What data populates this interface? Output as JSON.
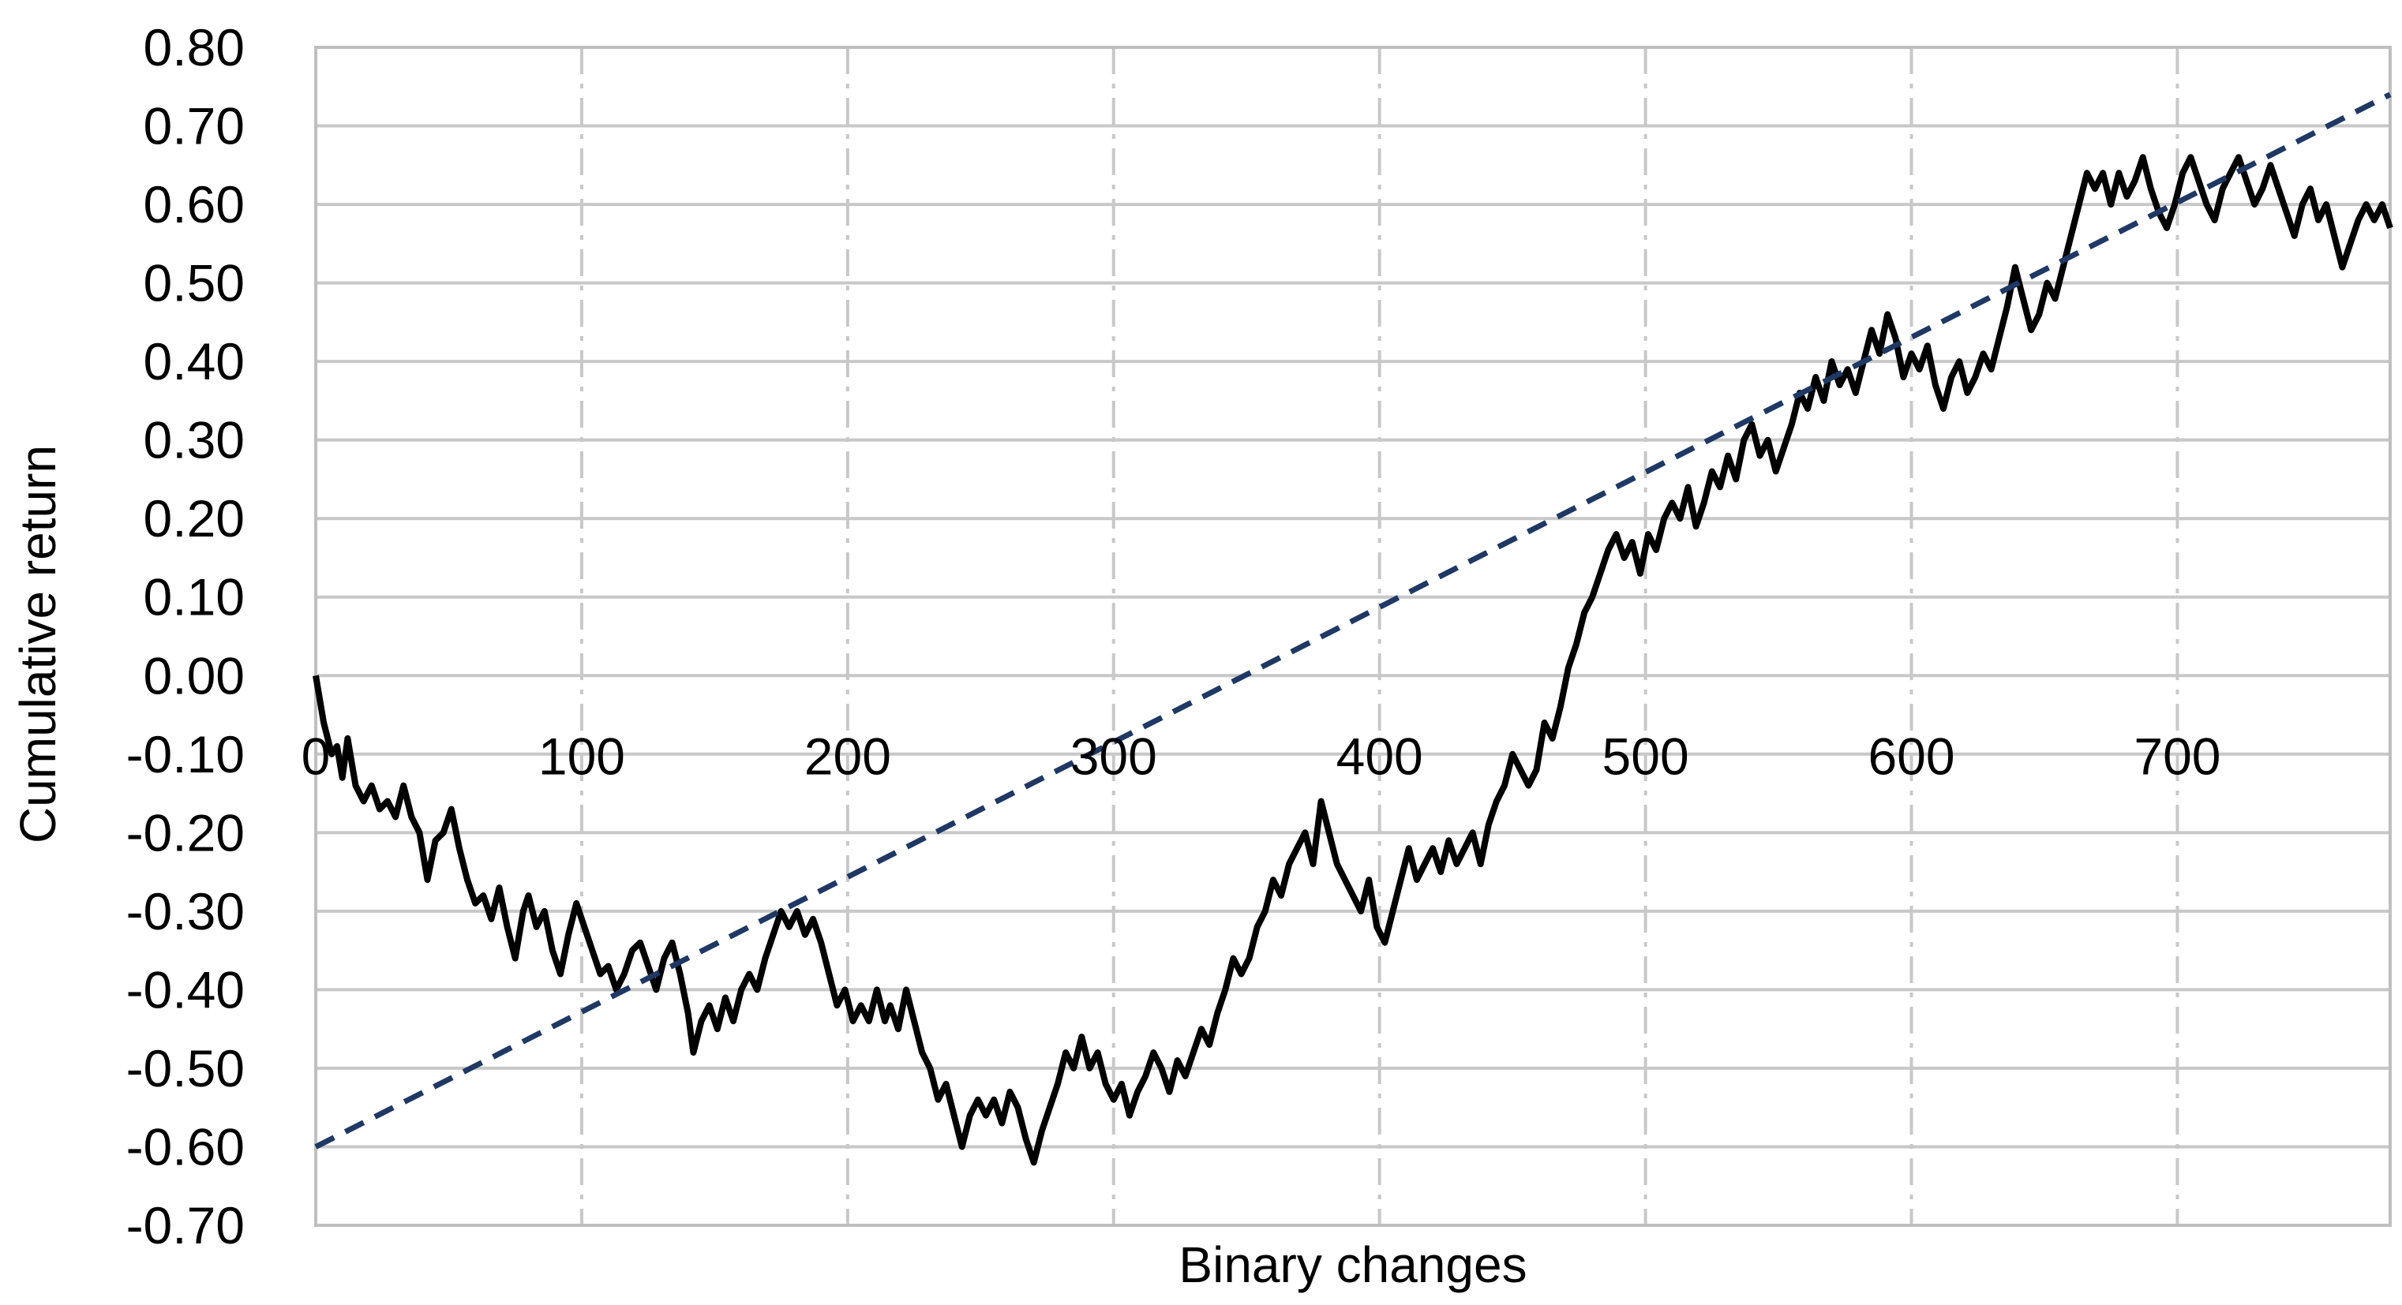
{
  "chart_data": {
    "type": "line",
    "xlabel": "Binary changes",
    "ylabel": "Cumulative return",
    "xlim": [
      0,
      780
    ],
    "ylim": [
      -0.7,
      0.8
    ],
    "x_ticks": [
      0,
      100,
      200,
      300,
      400,
      500,
      600,
      700
    ],
    "x_tick_labels": [
      "0",
      "100",
      "200",
      "300",
      "400",
      "500",
      "600",
      "700"
    ],
    "y_ticks": [
      0.8,
      0.7,
      0.6,
      0.5,
      0.4,
      0.3,
      0.2,
      0.1,
      0.0,
      -0.1,
      -0.2,
      -0.3,
      -0.4,
      -0.5,
      -0.6,
      -0.7
    ],
    "y_tick_labels": [
      "0.80",
      "0.70",
      "0.60",
      "0.50",
      "0.40",
      "0.30",
      "0.20",
      "0.10",
      "0.00",
      "-0.10",
      "-0.20",
      "-0.30",
      "-0.40",
      "-0.50",
      "-0.60",
      "-0.70"
    ],
    "grid": {
      "horizontal": "solid",
      "vertical": "dash-dot"
    },
    "series": [
      {
        "style": "solid",
        "color": "#000000",
        "points": [
          [
            0,
            0.0
          ],
          [
            3,
            -0.06
          ],
          [
            6,
            -0.1
          ],
          [
            8,
            -0.09
          ],
          [
            10,
            -0.13
          ],
          [
            12,
            -0.08
          ],
          [
            15,
            -0.14
          ],
          [
            18,
            -0.16
          ],
          [
            21,
            -0.14
          ],
          [
            24,
            -0.17
          ],
          [
            27,
            -0.16
          ],
          [
            30,
            -0.18
          ],
          [
            33,
            -0.14
          ],
          [
            36,
            -0.18
          ],
          [
            39,
            -0.2
          ],
          [
            42,
            -0.26
          ],
          [
            45,
            -0.21
          ],
          [
            48,
            -0.2
          ],
          [
            51,
            -0.17
          ],
          [
            54,
            -0.22
          ],
          [
            57,
            -0.26
          ],
          [
            60,
            -0.29
          ],
          [
            63,
            -0.28
          ],
          [
            66,
            -0.31
          ],
          [
            69,
            -0.27
          ],
          [
            72,
            -0.32
          ],
          [
            75,
            -0.36
          ],
          [
            78,
            -0.3
          ],
          [
            80,
            -0.28
          ],
          [
            83,
            -0.32
          ],
          [
            86,
            -0.3
          ],
          [
            89,
            -0.35
          ],
          [
            92,
            -0.38
          ],
          [
            95,
            -0.33
          ],
          [
            98,
            -0.29
          ],
          [
            101,
            -0.32
          ],
          [
            104,
            -0.35
          ],
          [
            107,
            -0.38
          ],
          [
            110,
            -0.37
          ],
          [
            113,
            -0.4
          ],
          [
            116,
            -0.38
          ],
          [
            119,
            -0.35
          ],
          [
            122,
            -0.34
          ],
          [
            125,
            -0.37
          ],
          [
            128,
            -0.4
          ],
          [
            131,
            -0.36
          ],
          [
            134,
            -0.34
          ],
          [
            137,
            -0.38
          ],
          [
            140,
            -0.43
          ],
          [
            142,
            -0.48
          ],
          [
            145,
            -0.44
          ],
          [
            148,
            -0.42
          ],
          [
            151,
            -0.45
          ],
          [
            154,
            -0.41
          ],
          [
            157,
            -0.44
          ],
          [
            160,
            -0.4
          ],
          [
            163,
            -0.38
          ],
          [
            166,
            -0.4
          ],
          [
            169,
            -0.36
          ],
          [
            172,
            -0.33
          ],
          [
            175,
            -0.3
          ],
          [
            178,
            -0.32
          ],
          [
            181,
            -0.3
          ],
          [
            184,
            -0.33
          ],
          [
            187,
            -0.31
          ],
          [
            190,
            -0.34
          ],
          [
            193,
            -0.38
          ],
          [
            196,
            -0.42
          ],
          [
            199,
            -0.4
          ],
          [
            202,
            -0.44
          ],
          [
            205,
            -0.42
          ],
          [
            208,
            -0.44
          ],
          [
            211,
            -0.4
          ],
          [
            214,
            -0.44
          ],
          [
            216,
            -0.42
          ],
          [
            219,
            -0.45
          ],
          [
            222,
            -0.4
          ],
          [
            225,
            -0.44
          ],
          [
            228,
            -0.48
          ],
          [
            231,
            -0.5
          ],
          [
            234,
            -0.54
          ],
          [
            237,
            -0.52
          ],
          [
            240,
            -0.56
          ],
          [
            243,
            -0.6
          ],
          [
            246,
            -0.56
          ],
          [
            249,
            -0.54
          ],
          [
            252,
            -0.56
          ],
          [
            255,
            -0.54
          ],
          [
            258,
            -0.57
          ],
          [
            261,
            -0.53
          ],
          [
            264,
            -0.55
          ],
          [
            267,
            -0.59
          ],
          [
            270,
            -0.62
          ],
          [
            273,
            -0.58
          ],
          [
            276,
            -0.55
          ],
          [
            279,
            -0.52
          ],
          [
            282,
            -0.48
          ],
          [
            285,
            -0.5
          ],
          [
            288,
            -0.46
          ],
          [
            291,
            -0.5
          ],
          [
            294,
            -0.48
          ],
          [
            297,
            -0.52
          ],
          [
            300,
            -0.54
          ],
          [
            303,
            -0.52
          ],
          [
            306,
            -0.56
          ],
          [
            309,
            -0.53
          ],
          [
            312,
            -0.51
          ],
          [
            315,
            -0.48
          ],
          [
            318,
            -0.5
          ],
          [
            321,
            -0.53
          ],
          [
            324,
            -0.49
          ],
          [
            327,
            -0.51
          ],
          [
            330,
            -0.48
          ],
          [
            333,
            -0.45
          ],
          [
            336,
            -0.47
          ],
          [
            339,
            -0.43
          ],
          [
            342,
            -0.4
          ],
          [
            345,
            -0.36
          ],
          [
            348,
            -0.38
          ],
          [
            351,
            -0.36
          ],
          [
            354,
            -0.32
          ],
          [
            357,
            -0.3
          ],
          [
            360,
            -0.26
          ],
          [
            363,
            -0.28
          ],
          [
            366,
            -0.24
          ],
          [
            369,
            -0.22
          ],
          [
            372,
            -0.2
          ],
          [
            375,
            -0.24
          ],
          [
            378,
            -0.16
          ],
          [
            381,
            -0.2
          ],
          [
            384,
            -0.24
          ],
          [
            387,
            -0.26
          ],
          [
            390,
            -0.28
          ],
          [
            393,
            -0.3
          ],
          [
            396,
            -0.26
          ],
          [
            399,
            -0.32
          ],
          [
            402,
            -0.34
          ],
          [
            405,
            -0.3
          ],
          [
            408,
            -0.26
          ],
          [
            411,
            -0.22
          ],
          [
            414,
            -0.26
          ],
          [
            417,
            -0.24
          ],
          [
            420,
            -0.22
          ],
          [
            423,
            -0.25
          ],
          [
            426,
            -0.21
          ],
          [
            429,
            -0.24
          ],
          [
            432,
            -0.22
          ],
          [
            435,
            -0.2
          ],
          [
            438,
            -0.24
          ],
          [
            441,
            -0.19
          ],
          [
            444,
            -0.16
          ],
          [
            447,
            -0.14
          ],
          [
            450,
            -0.1
          ],
          [
            453,
            -0.12
          ],
          [
            456,
            -0.14
          ],
          [
            459,
            -0.12
          ],
          [
            462,
            -0.06
          ],
          [
            465,
            -0.08
          ],
          [
            468,
            -0.04
          ],
          [
            471,
            0.01
          ],
          [
            474,
            0.04
          ],
          [
            477,
            0.08
          ],
          [
            480,
            0.1
          ],
          [
            483,
            0.13
          ],
          [
            486,
            0.16
          ],
          [
            489,
            0.18
          ],
          [
            492,
            0.15
          ],
          [
            495,
            0.17
          ],
          [
            498,
            0.13
          ],
          [
            501,
            0.18
          ],
          [
            504,
            0.16
          ],
          [
            507,
            0.2
          ],
          [
            510,
            0.22
          ],
          [
            513,
            0.2
          ],
          [
            516,
            0.24
          ],
          [
            519,
            0.19
          ],
          [
            522,
            0.22
          ],
          [
            525,
            0.26
          ],
          [
            528,
            0.24
          ],
          [
            531,
            0.28
          ],
          [
            534,
            0.25
          ],
          [
            537,
            0.3
          ],
          [
            540,
            0.32
          ],
          [
            543,
            0.28
          ],
          [
            546,
            0.3
          ],
          [
            549,
            0.26
          ],
          [
            552,
            0.29
          ],
          [
            555,
            0.32
          ],
          [
            558,
            0.36
          ],
          [
            561,
            0.34
          ],
          [
            564,
            0.38
          ],
          [
            567,
            0.35
          ],
          [
            570,
            0.4
          ],
          [
            573,
            0.37
          ],
          [
            576,
            0.39
          ],
          [
            579,
            0.36
          ],
          [
            582,
            0.4
          ],
          [
            585,
            0.44
          ],
          [
            588,
            0.41
          ],
          [
            591,
            0.46
          ],
          [
            594,
            0.43
          ],
          [
            597,
            0.38
          ],
          [
            600,
            0.41
          ],
          [
            603,
            0.39
          ],
          [
            606,
            0.42
          ],
          [
            609,
            0.37
          ],
          [
            612,
            0.34
          ],
          [
            615,
            0.38
          ],
          [
            618,
            0.4
          ],
          [
            621,
            0.36
          ],
          [
            624,
            0.38
          ],
          [
            627,
            0.41
          ],
          [
            630,
            0.39
          ],
          [
            633,
            0.43
          ],
          [
            636,
            0.47
          ],
          [
            639,
            0.52
          ],
          [
            642,
            0.48
          ],
          [
            645,
            0.44
          ],
          [
            648,
            0.46
          ],
          [
            651,
            0.5
          ],
          [
            654,
            0.48
          ],
          [
            657,
            0.52
          ],
          [
            660,
            0.56
          ],
          [
            663,
            0.6
          ],
          [
            666,
            0.64
          ],
          [
            669,
            0.62
          ],
          [
            672,
            0.64
          ],
          [
            675,
            0.6
          ],
          [
            678,
            0.64
          ],
          [
            681,
            0.61
          ],
          [
            684,
            0.63
          ],
          [
            687,
            0.66
          ],
          [
            690,
            0.62
          ],
          [
            693,
            0.59
          ],
          [
            696,
            0.57
          ],
          [
            699,
            0.6
          ],
          [
            702,
            0.64
          ],
          [
            705,
            0.66
          ],
          [
            708,
            0.63
          ],
          [
            711,
            0.6
          ],
          [
            714,
            0.58
          ],
          [
            717,
            0.62
          ],
          [
            720,
            0.64
          ],
          [
            723,
            0.66
          ],
          [
            726,
            0.63
          ],
          [
            729,
            0.6
          ],
          [
            732,
            0.62
          ],
          [
            735,
            0.65
          ],
          [
            738,
            0.62
          ],
          [
            741,
            0.59
          ],
          [
            744,
            0.56
          ],
          [
            747,
            0.6
          ],
          [
            750,
            0.62
          ],
          [
            753,
            0.58
          ],
          [
            756,
            0.6
          ],
          [
            759,
            0.56
          ],
          [
            762,
            0.52
          ],
          [
            765,
            0.55
          ],
          [
            768,
            0.58
          ],
          [
            771,
            0.6
          ],
          [
            774,
            0.58
          ],
          [
            777,
            0.6
          ],
          [
            780,
            0.57
          ]
        ]
      },
      {
        "style": "dashed",
        "color": "#1f3864",
        "points": [
          [
            0,
            -0.6
          ],
          [
            780,
            0.74
          ]
        ]
      }
    ]
  }
}
